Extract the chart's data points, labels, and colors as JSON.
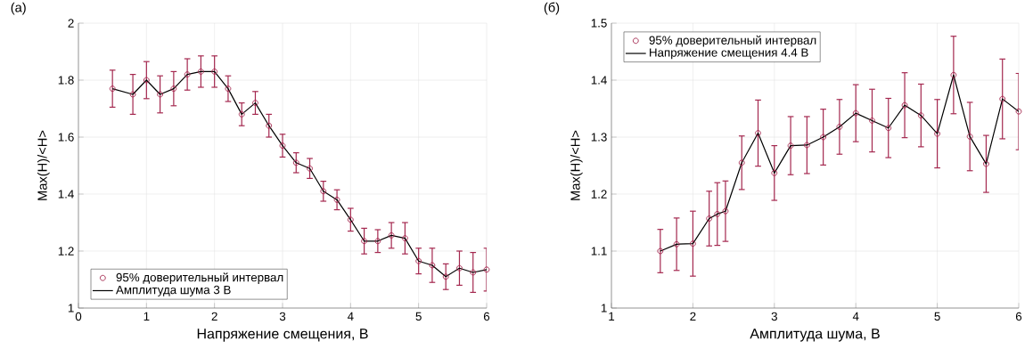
{
  "chart_data": [
    {
      "type": "line",
      "title": "(a)",
      "xlabel": "Напряжение смещения, В",
      "ylabel": "Max(H)/<H>",
      "x": [
        0.5,
        0.8,
        1.0,
        1.2,
        1.4,
        1.6,
        1.8,
        2.0,
        2.2,
        2.4,
        2.6,
        2.8,
        3.0,
        3.2,
        3.4,
        3.6,
        3.8,
        4.0,
        4.2,
        4.4,
        4.6,
        4.8,
        5.0,
        5.2,
        5.4,
        5.6,
        5.8,
        6.0
      ],
      "series": [
        {
          "type": "scatter",
          "name": "95% доверительный интервал",
          "color": "#a4284f",
          "marker": "circle",
          "values": [
            1.77,
            1.75,
            1.8,
            1.75,
            1.77,
            1.82,
            1.83,
            1.83,
            1.77,
            1.68,
            1.72,
            1.64,
            1.57,
            1.51,
            1.49,
            1.41,
            1.38,
            1.31,
            1.235,
            1.235,
            1.255,
            1.245,
            1.165,
            1.15,
            1.11,
            1.14,
            1.125,
            1.135
          ],
          "errors": [
            0.065,
            0.07,
            0.065,
            0.065,
            0.06,
            0.055,
            0.055,
            0.055,
            0.045,
            0.04,
            0.04,
            0.04,
            0.04,
            0.035,
            0.035,
            0.035,
            0.035,
            0.04,
            0.045,
            0.04,
            0.045,
            0.055,
            0.045,
            0.06,
            0.045,
            0.06,
            0.07,
            0.075
          ]
        },
        {
          "name": "Амплитуда шума 3 В",
          "color": "#000000",
          "values": [
            1.77,
            1.75,
            1.8,
            1.75,
            1.77,
            1.82,
            1.83,
            1.83,
            1.77,
            1.68,
            1.72,
            1.64,
            1.57,
            1.51,
            1.49,
            1.41,
            1.38,
            1.31,
            1.235,
            1.235,
            1.255,
            1.245,
            1.165,
            1.15,
            1.11,
            1.14,
            1.125,
            1.135
          ]
        }
      ],
      "xlim": [
        0,
        6
      ],
      "ylim": [
        1,
        2
      ],
      "xticks": [
        0,
        1,
        2,
        3,
        4,
        5,
        6
      ],
      "yticks": [
        1,
        1.2,
        1.4,
        1.6,
        1.8,
        2
      ],
      "grid": true,
      "legend": "bottom left"
    },
    {
      "type": "line",
      "title": "(б)",
      "xlabel": "Амплитуда шума, В",
      "ylabel": "Max(H)/<H>",
      "x": [
        1.6,
        1.8,
        2.0,
        2.2,
        2.3,
        2.4,
        2.6,
        2.8,
        3.0,
        3.2,
        3.4,
        3.6,
        3.8,
        4.0,
        4.2,
        4.4,
        4.6,
        4.8,
        5.0,
        5.2,
        5.4,
        5.6,
        5.8,
        6.0
      ],
      "series": [
        {
          "type": "scatter",
          "name": "95% доверительный интервал",
          "color": "#a4284f",
          "marker": "circle",
          "values": [
            1.1,
            1.112,
            1.113,
            1.157,
            1.165,
            1.17,
            1.255,
            1.307,
            1.237,
            1.285,
            1.286,
            1.3,
            1.318,
            1.342,
            1.329,
            1.316,
            1.356,
            1.338,
            1.306,
            1.409,
            1.301,
            1.253,
            1.367,
            1.345
          ],
          "errors": [
            0.038,
            0.046,
            0.057,
            0.048,
            0.055,
            0.053,
            0.047,
            0.058,
            0.048,
            0.051,
            0.05,
            0.049,
            0.048,
            0.05,
            0.055,
            0.052,
            0.057,
            0.055,
            0.06,
            0.068,
            0.06,
            0.05,
            0.07,
            0.067
          ]
        },
        {
          "name": "Напряжение смещения 4.4 В",
          "color": "#000000",
          "values": [
            1.1,
            1.112,
            1.113,
            1.157,
            1.165,
            1.17,
            1.255,
            1.307,
            1.237,
            1.285,
            1.286,
            1.3,
            1.318,
            1.342,
            1.329,
            1.316,
            1.356,
            1.338,
            1.306,
            1.409,
            1.301,
            1.253,
            1.367,
            1.345
          ]
        }
      ],
      "xlim": [
        1,
        6
      ],
      "ylim": [
        1,
        1.5
      ],
      "xticks": [
        1,
        2,
        3,
        4,
        5,
        6
      ],
      "yticks": [
        1,
        1.1,
        1.2,
        1.3,
        1.4,
        1.5
      ],
      "grid": true,
      "legend": "top left"
    }
  ]
}
